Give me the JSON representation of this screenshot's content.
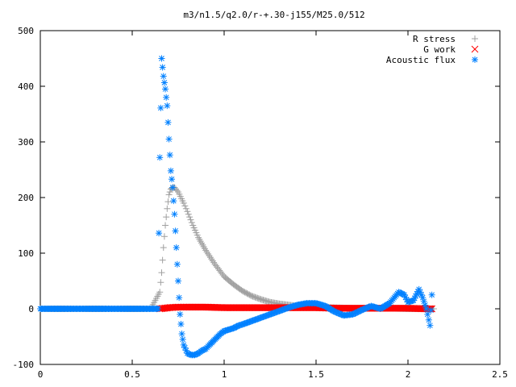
{
  "chart_data": {
    "type": "scatter",
    "title": "m3/n1.5/q2.0/r-+.30-j155/M25.0/512",
    "xlabel": "",
    "ylabel": "",
    "xlim": [
      0,
      2.5
    ],
    "ylim": [
      -100,
      500
    ],
    "xticks": [
      0,
      0.5,
      1,
      1.5,
      2,
      2.5
    ],
    "xtick_labels": [
      "0",
      "0.5",
      "1",
      "1.5",
      "2",
      "2.5"
    ],
    "yticks": [
      -100,
      0,
      100,
      200,
      300,
      400,
      500
    ],
    "ytick_labels": [
      "-100",
      "0",
      "100",
      "200",
      "300",
      "400",
      "500"
    ],
    "grid": false,
    "legend_position": "top-right",
    "series": [
      {
        "name": "R stress",
        "marker": "plus",
        "color": "#a0a0a0",
        "x": [
          0.0,
          0.2,
          0.4,
          0.6,
          0.65,
          0.66,
          0.67,
          0.68,
          0.69,
          0.7,
          0.71,
          0.72,
          0.73,
          0.75,
          0.78,
          0.8,
          0.83,
          0.86,
          0.9,
          0.95,
          1.0,
          1.05,
          1.1,
          1.15,
          1.2,
          1.25,
          1.3,
          1.35,
          1.4,
          1.5,
          1.6,
          1.7,
          1.8,
          1.9,
          2.0,
          2.1,
          2.14
        ],
        "y": [
          0,
          0,
          0,
          0,
          30,
          65,
          110,
          150,
          180,
          205,
          215,
          218,
          218,
          210,
          190,
          175,
          150,
          128,
          105,
          80,
          58,
          44,
          32,
          23,
          17,
          12,
          9,
          7,
          5,
          3,
          2,
          1,
          1,
          1,
          0,
          0,
          0
        ]
      },
      {
        "name": "G work",
        "marker": "cross",
        "color": "#ff0000",
        "x": [
          0.65,
          0.7,
          0.75,
          0.8,
          0.9,
          1.0,
          1.1,
          1.2,
          1.3,
          1.4,
          1.5,
          1.6,
          1.7,
          1.8,
          1.9,
          2.0,
          2.1,
          2.13
        ],
        "y": [
          0,
          2,
          3,
          3,
          3,
          2,
          2,
          2,
          2,
          2,
          2,
          1,
          1,
          1,
          1,
          1,
          0,
          0
        ]
      },
      {
        "name": "Acoustic flux",
        "marker": "star",
        "color": "#0080ff",
        "x": [
          0.0,
          0.1,
          0.2,
          0.3,
          0.4,
          0.5,
          0.6,
          0.64,
          0.65,
          0.66,
          0.67,
          0.68,
          0.69,
          0.7,
          0.71,
          0.72,
          0.73,
          0.74,
          0.75,
          0.76,
          0.77,
          0.78,
          0.8,
          0.82,
          0.84,
          0.86,
          0.88,
          0.9,
          0.92,
          0.95,
          0.98,
          1.0,
          1.02,
          1.05,
          1.08,
          1.1,
          1.15,
          1.2,
          1.25,
          1.3,
          1.35,
          1.4,
          1.45,
          1.5,
          1.55,
          1.6,
          1.65,
          1.7,
          1.75,
          1.8,
          1.85,
          1.9,
          1.95,
          1.98,
          2.0,
          2.03,
          2.06,
          2.08,
          2.1,
          2.12,
          2.13
        ],
        "y": [
          0,
          0,
          0,
          0,
          0,
          0,
          0,
          0,
          272,
          450,
          418,
          395,
          365,
          305,
          248,
          218,
          170,
          110,
          50,
          -10,
          -45,
          -65,
          -80,
          -83,
          -83,
          -80,
          -75,
          -72,
          -65,
          -55,
          -45,
          -40,
          -38,
          -35,
          -30,
          -28,
          -22,
          -16,
          -10,
          -4,
          2,
          7,
          10,
          10,
          5,
          -5,
          -12,
          -10,
          -2,
          5,
          0,
          10,
          30,
          25,
          12,
          15,
          35,
          20,
          0,
          -30,
          25
        ]
      }
    ]
  }
}
